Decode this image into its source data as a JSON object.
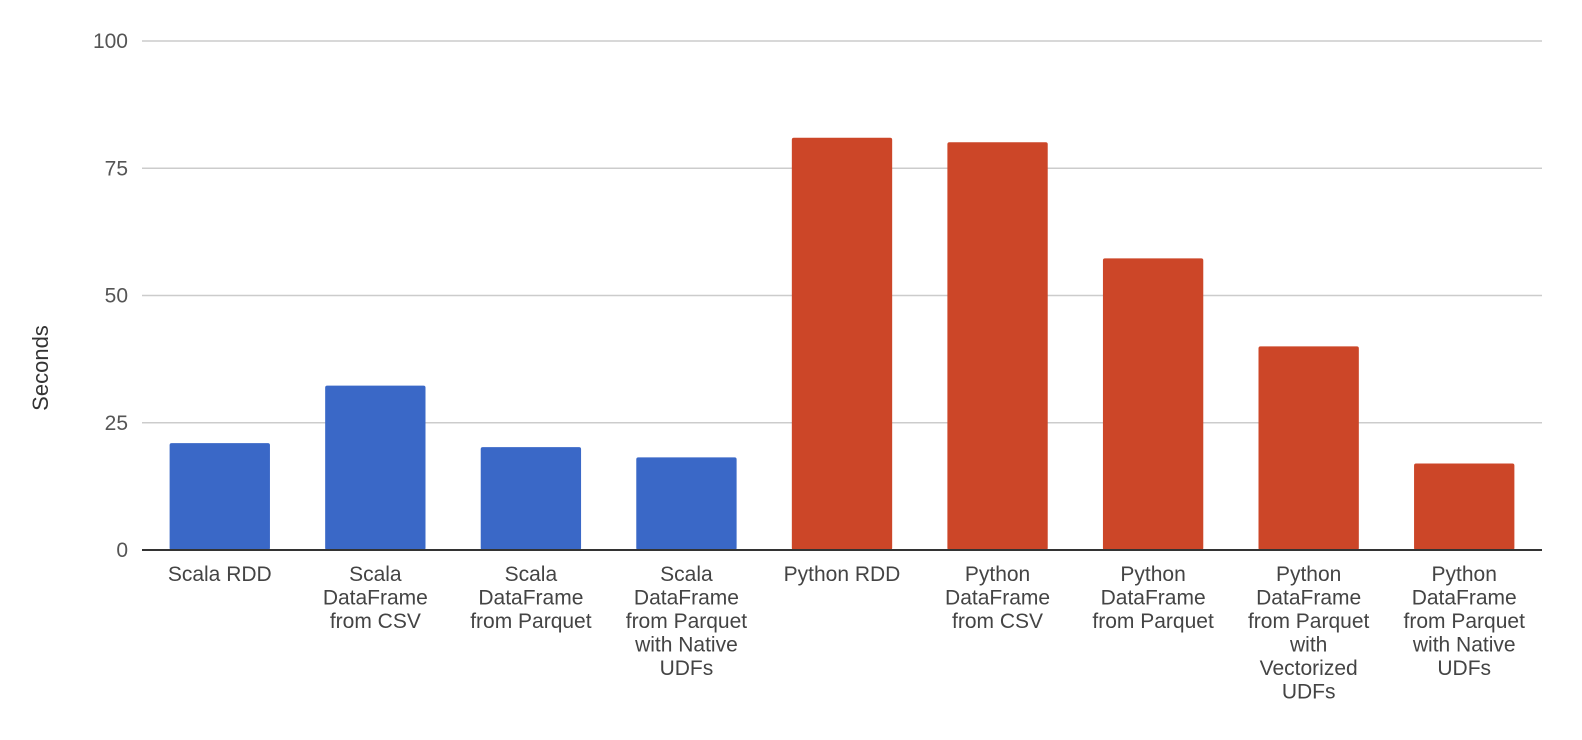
{
  "chart_data": {
    "type": "bar",
    "title": "",
    "xlabel": "",
    "ylabel": "Seconds",
    "ylim": [
      0,
      100
    ],
    "yticks": [
      0,
      25,
      50,
      75,
      100
    ],
    "grid": true,
    "legend": "none",
    "categories": [
      "Scala RDD",
      "Scala DataFrame from CSV",
      "Scala DataFrame from Parquet",
      "Scala DataFrame from Parquet with Native UDFs",
      "Python RDD",
      "Python DataFrame from CSV",
      "Python DataFrame from Parquet",
      "Python DataFrame from Parquet with Vectorized UDFs",
      "Python DataFrame from Parquet with Native UDFs"
    ],
    "category_lines": [
      [
        "Scala RDD"
      ],
      [
        "Scala",
        "DataFrame",
        "from CSV"
      ],
      [
        "Scala",
        "DataFrame",
        "from Parquet"
      ],
      [
        "Scala",
        "DataFrame",
        "from Parquet",
        "with Native",
        "UDFs"
      ],
      [
        "Python RDD"
      ],
      [
        "Python",
        "DataFrame",
        "from CSV"
      ],
      [
        "Python",
        "DataFrame",
        "from Parquet"
      ],
      [
        "Python",
        "DataFrame",
        "from Parquet",
        "with",
        "Vectorized",
        "UDFs"
      ],
      [
        "Python",
        "DataFrame",
        "from Parquet",
        "with Native",
        "UDFs"
      ]
    ],
    "values": [
      21,
      32.3,
      20.2,
      18.2,
      81,
      80.1,
      57.3,
      40,
      17
    ],
    "colors": [
      "#3a68c7",
      "#3a68c7",
      "#3a68c7",
      "#3a68c7",
      "#cc4628",
      "#cc4628",
      "#cc4628",
      "#cc4628",
      "#cc4628"
    ]
  }
}
